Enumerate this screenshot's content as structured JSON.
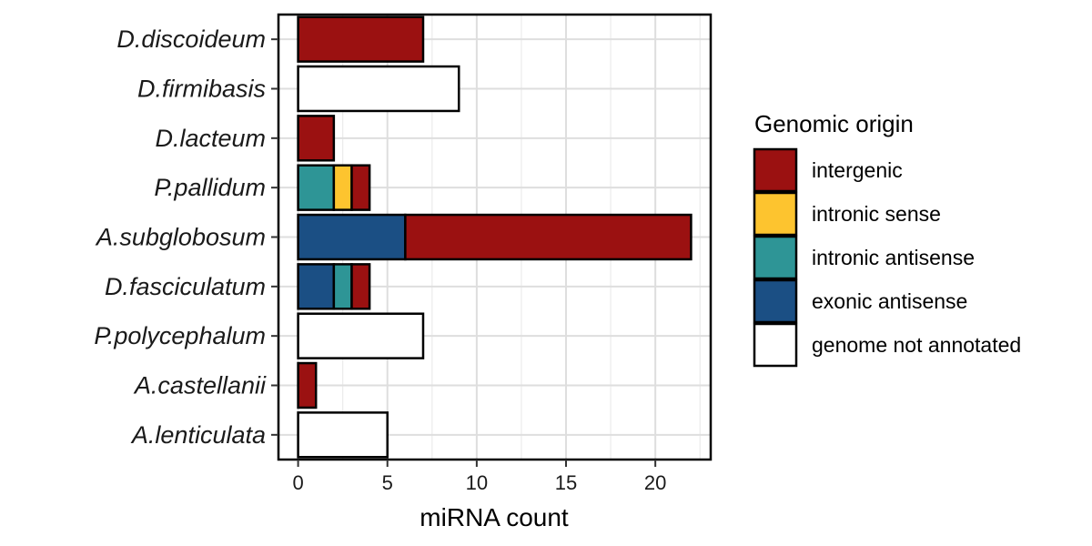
{
  "chart_data": {
    "type": "bar",
    "orientation": "horizontal",
    "stacked": true,
    "categories": [
      "D.discoideum",
      "D.firmibasis",
      "D.lacteum",
      "P.pallidum",
      "A.subglobosum",
      "D.fasciculatum",
      "P.polycephalum",
      "A.castellanii",
      "A.lenticulata"
    ],
    "series": [
      {
        "name": "exonic antisense",
        "color": "#1B4F84",
        "values": [
          0,
          0,
          0,
          0,
          6,
          2,
          0,
          0,
          0
        ]
      },
      {
        "name": "intronic antisense",
        "color": "#2E9596",
        "values": [
          0,
          0,
          0,
          2,
          0,
          1,
          0,
          0,
          0
        ]
      },
      {
        "name": "intronic sense",
        "color": "#FDC42F",
        "values": [
          0,
          0,
          0,
          1,
          0,
          0,
          0,
          0,
          0
        ]
      },
      {
        "name": "intergenic",
        "color": "#9B1111",
        "values": [
          7,
          0,
          2,
          1,
          16,
          1,
          0,
          1,
          0
        ]
      },
      {
        "name": "genome not annotated",
        "color": "#FFFFFF",
        "values": [
          0,
          9,
          0,
          0,
          0,
          0,
          7,
          0,
          5
        ]
      }
    ],
    "stack_order": [
      "exonic antisense",
      "intronic antisense",
      "intronic sense",
      "intergenic",
      "genome not annotated"
    ],
    "xlabel": "miRNA count",
    "ylabel": "",
    "xlim": [
      -1.1,
      23.1
    ],
    "xticks": [
      0,
      5,
      10,
      15,
      20
    ],
    "grid": true,
    "legend": {
      "title": "Genomic origin",
      "placement": "right",
      "order": [
        "intergenic",
        "intronic sense",
        "intronic antisense",
        "exonic antisense",
        "genome not annotated"
      ]
    }
  }
}
